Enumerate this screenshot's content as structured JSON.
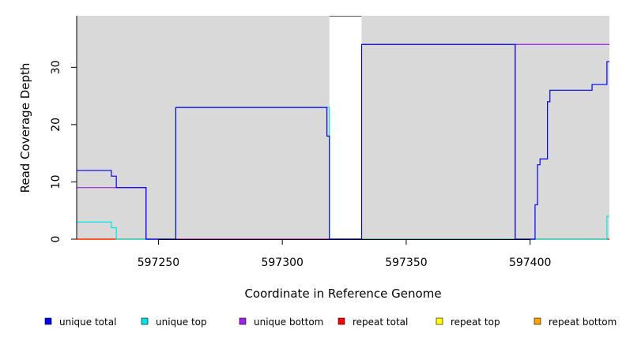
{
  "chart_data": {
    "type": "line",
    "title": "",
    "xlabel": "Coordinate in Reference Genome",
    "ylabel": "Read Coverage Depth",
    "xlim": [
      597217,
      597432
    ],
    "ylim": [
      0,
      39
    ],
    "x_ticks": [
      597250,
      597300,
      597350,
      597400
    ],
    "y_ticks": [
      0,
      10,
      20,
      30
    ],
    "background": "#d9d9d9",
    "uncovered_regions": [
      [
        597319,
        597332
      ]
    ],
    "legend_position": "bottom",
    "legend": [
      {
        "name": "unique total",
        "color": "#0000ff"
      },
      {
        "name": "unique top",
        "color": "#00e5e5"
      },
      {
        "name": "unique bottom",
        "color": "#a020f0"
      },
      {
        "name": "repeat total",
        "color": "#ff0000"
      },
      {
        "name": "repeat top",
        "color": "#ffff00"
      },
      {
        "name": "repeat bottom",
        "color": "#ffa500"
      }
    ],
    "series": [
      {
        "name": "unique total",
        "color": "#0000ff",
        "x": [
          597217,
          597231,
          597231,
          597233,
          597233,
          597245,
          597245,
          597257,
          597257,
          597318,
          597318,
          597319,
          597319,
          597332,
          597332,
          597394,
          597394,
          597402,
          597402,
          597403,
          597403,
          597404,
          597404,
          597407,
          597407,
          597408,
          597408,
          597425,
          597425,
          597431,
          597431,
          597432
        ],
        "y": [
          12,
          12,
          11,
          11,
          9,
          9,
          0,
          0,
          23,
          23,
          18,
          18,
          0,
          0,
          34,
          34,
          0,
          0,
          6,
          6,
          13,
          13,
          14,
          14,
          24,
          24,
          26,
          26,
          27,
          27,
          31,
          31
        ]
      },
      {
        "name": "unique top",
        "color": "#00e5e5",
        "x": [
          597217,
          597231,
          597231,
          597233,
          597233,
          597257,
          597257,
          597319,
          597319,
          597332,
          597332,
          597431,
          597431,
          597432
        ],
        "y": [
          3,
          3,
          2,
          2,
          0,
          0,
          23,
          23,
          0,
          0,
          0,
          0,
          4,
          4
        ]
      },
      {
        "name": "unique bottom",
        "color": "#a020f0",
        "x": [
          597217,
          597245,
          597245,
          597394,
          597394,
          597432
        ],
        "y": [
          9,
          9,
          0,
          0,
          34,
          34
        ]
      },
      {
        "name": "repeat total",
        "color": "#ff0000",
        "x": [
          597217,
          597432
        ],
        "y": [
          0,
          0
        ]
      },
      {
        "name": "repeat top",
        "color": "#ffff00",
        "x": [
          597217,
          597432
        ],
        "y": [
          0,
          0
        ]
      },
      {
        "name": "repeat bottom",
        "color": "#ffa500",
        "x": [
          597217,
          597432
        ],
        "y": [
          0,
          0
        ]
      }
    ]
  }
}
